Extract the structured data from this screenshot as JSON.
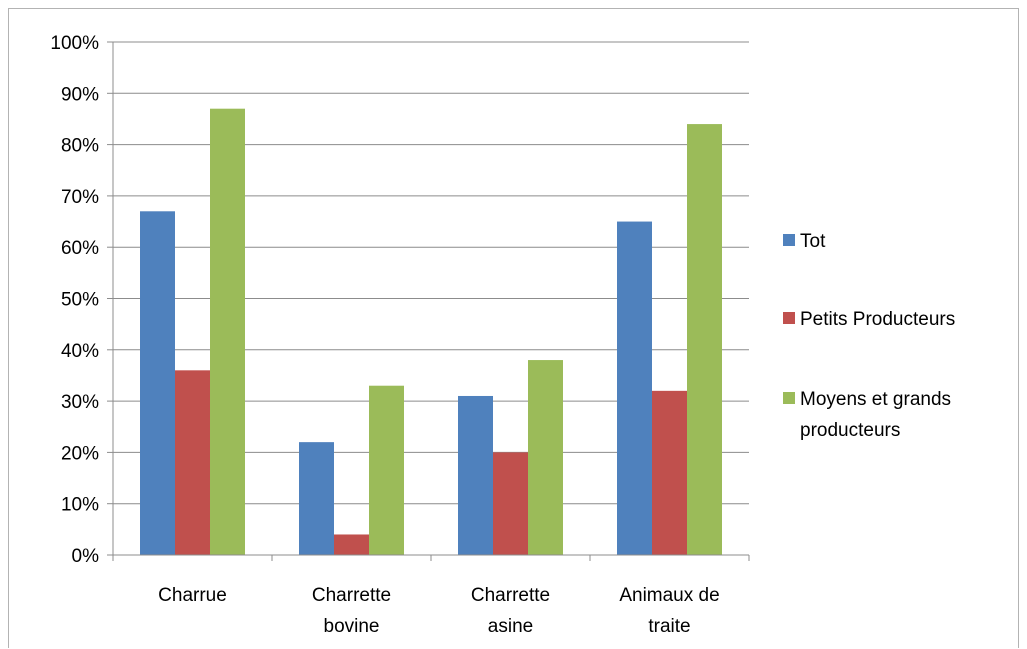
{
  "colors": {
    "series": [
      "#4f81bd",
      "#c0504d",
      "#9bbb59"
    ],
    "grid": "#8c8c8c",
    "frame": "#b3b3b3"
  },
  "chart_data": {
    "type": "bar",
    "title": "",
    "xlabel": "",
    "ylabel": "",
    "ylim": [
      0,
      100
    ],
    "y_tick_step": 10,
    "y_tick_format": "percent",
    "grid": true,
    "legend_position": "right",
    "y_ticks": [
      "0%",
      "10%",
      "20%",
      "30%",
      "40%",
      "50%",
      "60%",
      "70%",
      "80%",
      "90%",
      "100%"
    ],
    "categories": [
      [
        "Charrue"
      ],
      [
        "Charrette",
        "bovine"
      ],
      [
        "Charrette",
        "asine"
      ],
      [
        "Animaux de",
        "traite"
      ]
    ],
    "series": [
      {
        "name": "Tot",
        "values": [
          67,
          22,
          31,
          65
        ]
      },
      {
        "name": "Petits Producteurs",
        "values": [
          36,
          4,
          20,
          32
        ]
      },
      {
        "name": [
          "Moyens et grands",
          "producteurs"
        ],
        "values": [
          87,
          33,
          38,
          84
        ]
      }
    ]
  }
}
